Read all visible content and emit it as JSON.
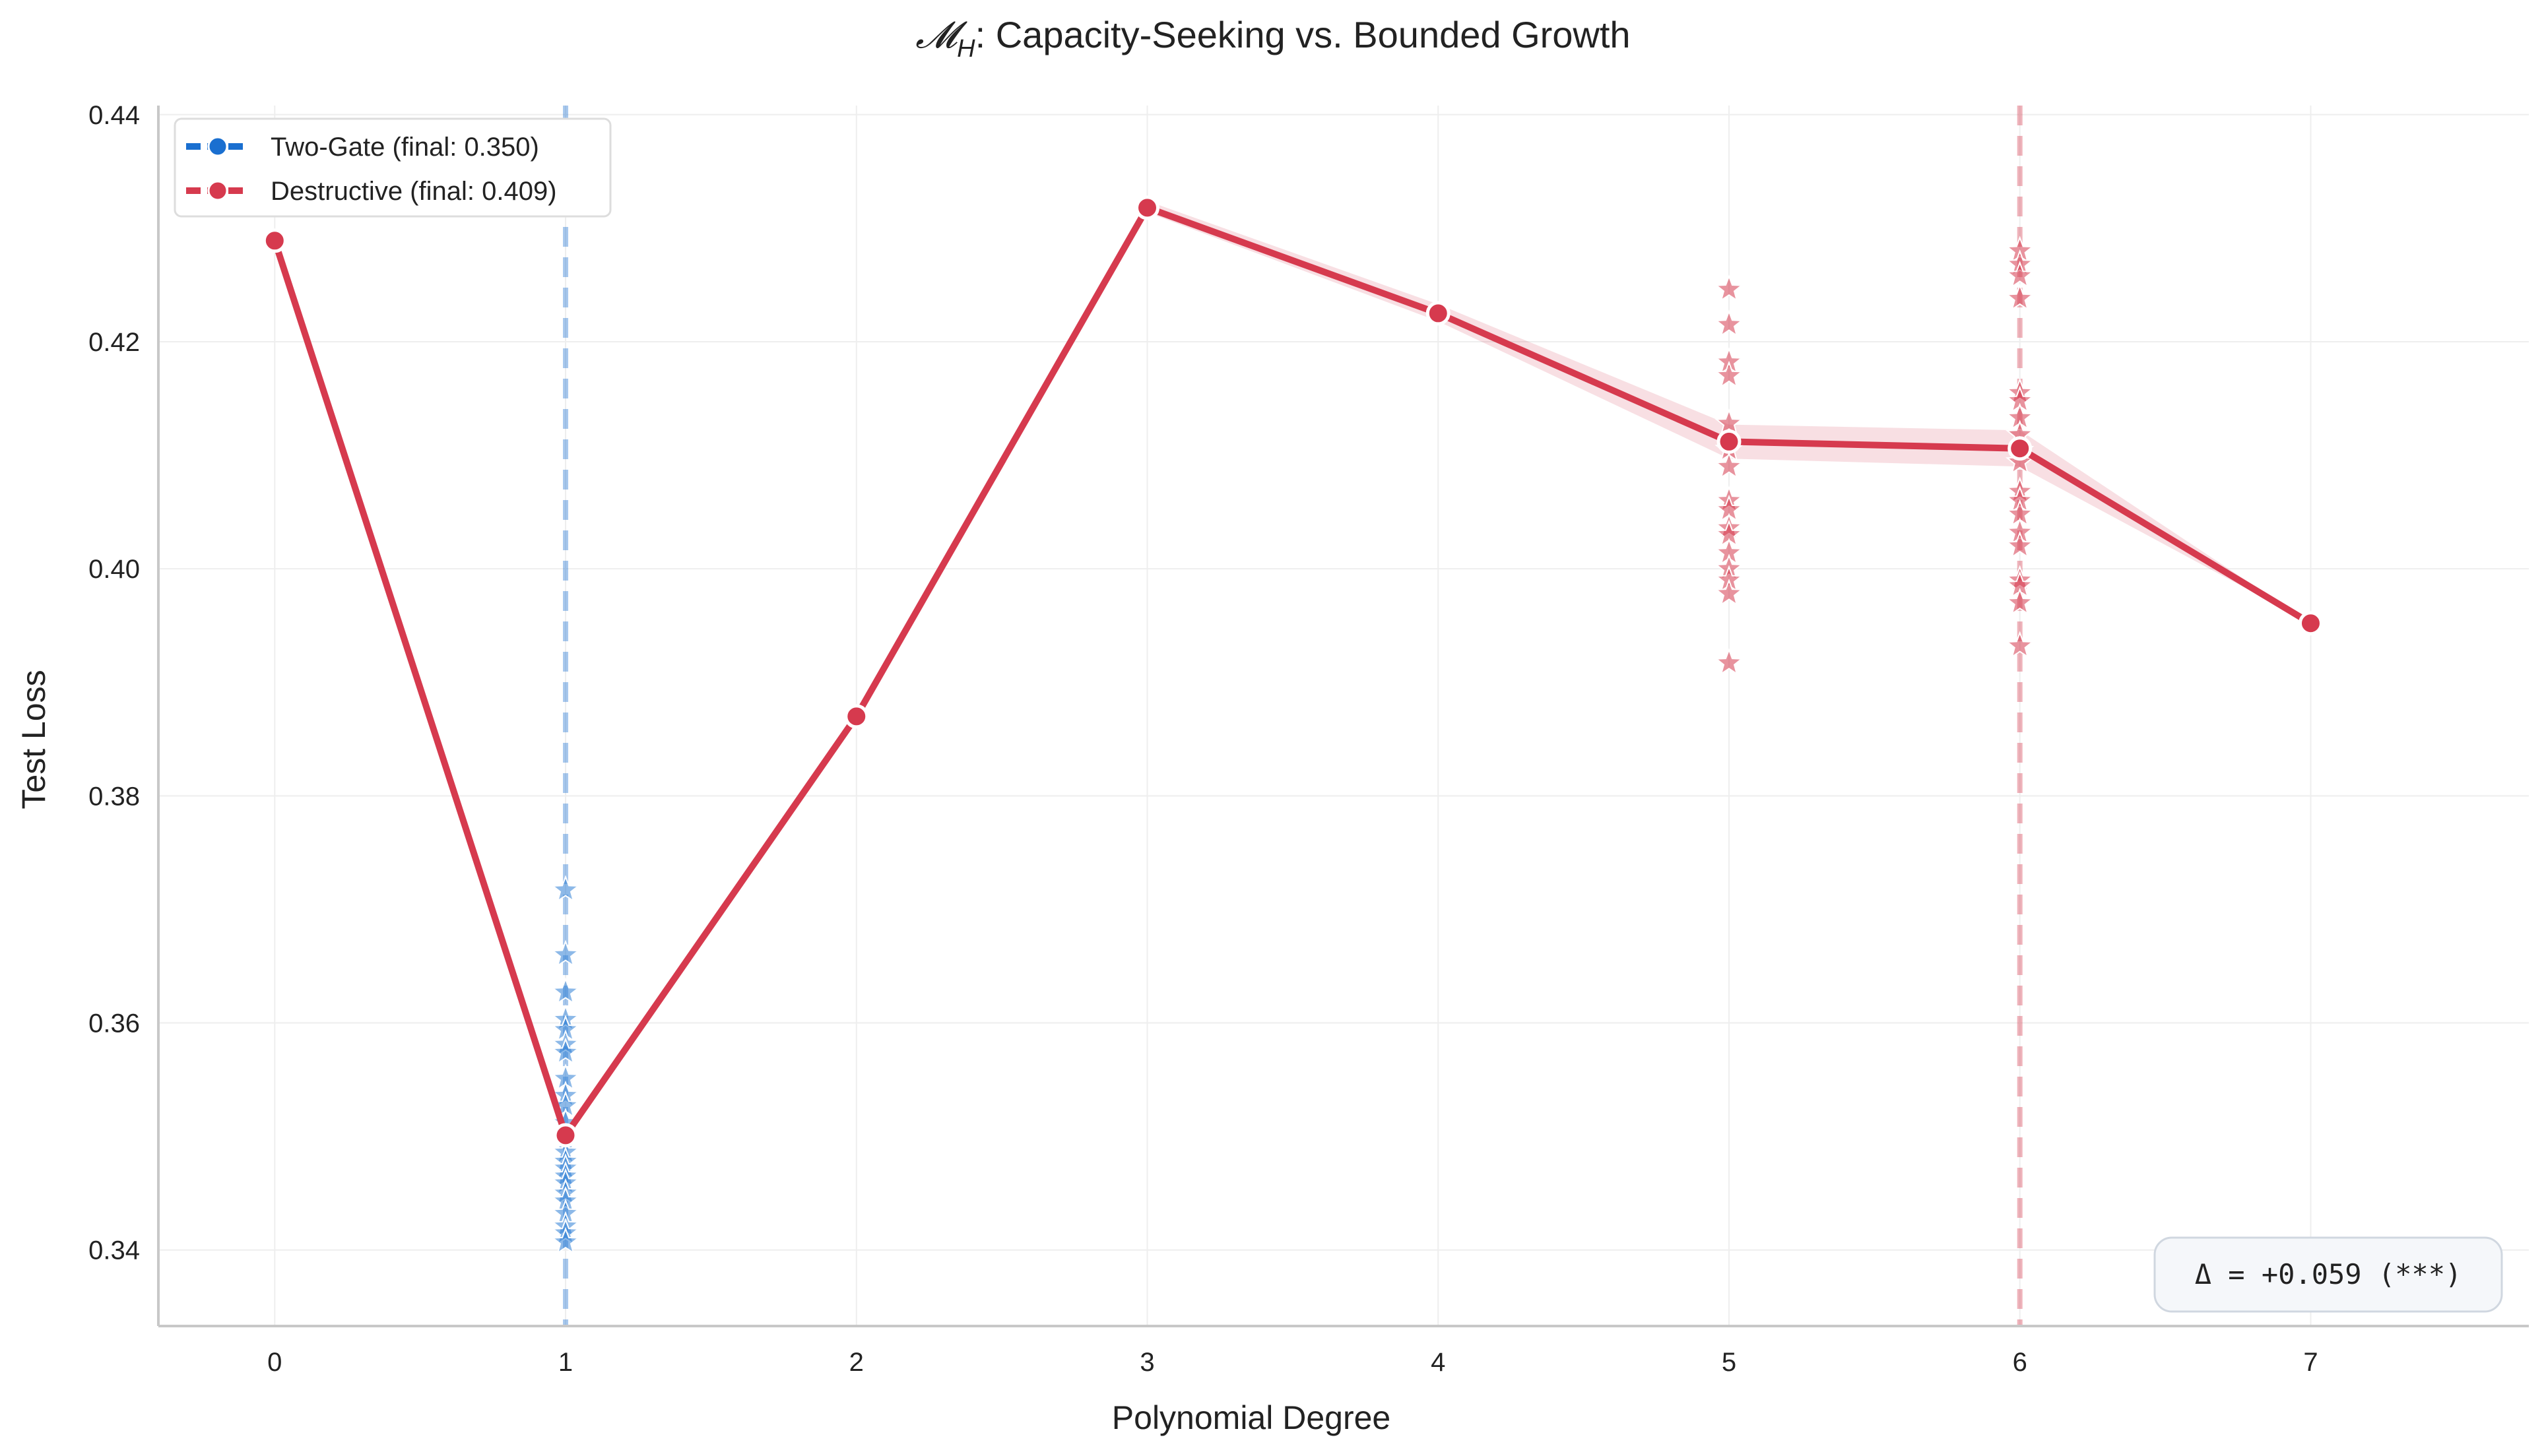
{
  "chart_data": {
    "type": "line",
    "title": "𝓜_H: Capacity-Seeking vs. Bounded Growth",
    "title_parts": {
      "script": "𝓜",
      "subscript": "H",
      "rest": ": Capacity-Seeking vs. Bounded Growth"
    },
    "xlabel": "Polynomial Degree",
    "ylabel": "Test Loss",
    "xlim": [
      -0.4,
      7.75
    ],
    "ylim": [
      0.3333,
      0.4408
    ],
    "xticks": [
      0,
      1,
      2,
      3,
      4,
      5,
      6,
      7
    ],
    "xtick_labels": [
      "0",
      "1",
      "2",
      "3",
      "4",
      "5",
      "6",
      "7"
    ],
    "yticks": [
      0.34,
      0.36,
      0.38,
      0.4,
      0.42,
      0.44
    ],
    "ytick_labels": [
      "0.34",
      "0.36",
      "0.38",
      "0.40",
      "0.42",
      "0.44"
    ],
    "grid": true,
    "legend_position": "top-left",
    "series": [
      {
        "name": "Destructive (final: 0.409)",
        "color": "#d63a4e",
        "x": [
          0,
          1,
          2,
          3,
          4,
          5,
          6,
          7
        ],
        "y": [
          0.4289,
          0.3501,
          0.387,
          0.4318,
          0.4225,
          0.4112,
          0.4106,
          0.3952
        ],
        "band_lower": [
          0.4289,
          0.3501,
          0.3866,
          0.4314,
          0.4218,
          0.4097,
          0.409,
          0.3952
        ],
        "band_upper": [
          0.4289,
          0.3501,
          0.3874,
          0.4324,
          0.4233,
          0.4127,
          0.4122,
          0.3952
        ]
      }
    ],
    "legend": [
      {
        "label": "Two-Gate (final: 0.350)",
        "color": "#1a6fd0",
        "style": "dashed-marker"
      },
      {
        "label": "Destructive (final: 0.409)",
        "color": "#d63a4e",
        "style": "dashed-marker"
      }
    ],
    "reference_lines": [
      {
        "x": 1,
        "color": "#1a6fd0",
        "style": "dashed"
      },
      {
        "x": 6,
        "color": "#d63a4e",
        "style": "dashed"
      }
    ],
    "scatter_points": [
      {
        "series": "Two-Gate",
        "color": "#2f7fd6",
        "x": 1,
        "y": [
          0.3717,
          0.366,
          0.3627,
          0.3603,
          0.3594,
          0.3581,
          0.3574,
          0.3551,
          0.3536,
          0.3527,
          0.3512,
          0.3497,
          0.3486,
          0.3478,
          0.3472,
          0.3465,
          0.3459,
          0.345,
          0.3443,
          0.3432,
          0.3421,
          0.3415,
          0.3407
        ]
      },
      {
        "series": "Destructive",
        "color": "#d63a4e",
        "x": 5,
        "y": [
          0.4246,
          0.4215,
          0.4182,
          0.417,
          0.4128,
          0.4105,
          0.409,
          0.406,
          0.4052,
          0.4036,
          0.403,
          0.4014,
          0.4,
          0.399,
          0.3978,
          0.3917
        ]
      },
      {
        "series": "Destructive",
        "color": "#d63a4e",
        "x": 6,
        "y": [
          0.428,
          0.4268,
          0.4258,
          0.4238,
          0.4155,
          0.4148,
          0.4133,
          0.4118,
          0.4104,
          0.4094,
          0.4068,
          0.406,
          0.4048,
          0.4032,
          0.402,
          0.399,
          0.3985,
          0.397,
          0.3932
        ]
      }
    ],
    "annotation": "Δ = +0.059 (***)"
  }
}
